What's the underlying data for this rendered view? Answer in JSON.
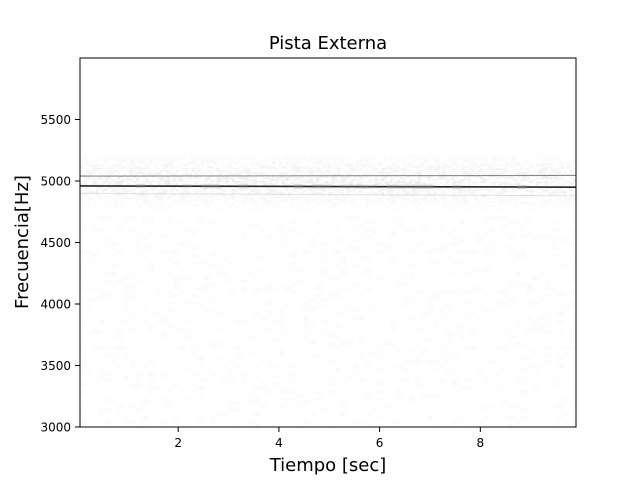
{
  "chart_data": {
    "type": "heatmap",
    "title": "Pista Externa",
    "xlabel": "Tiempo [sec]",
    "ylabel": "Frecuencia[Hz]",
    "xlim": [
      0.05,
      9.9
    ],
    "ylim": [
      3000,
      6000
    ],
    "xticks": [
      2,
      4,
      6,
      8
    ],
    "yticks": [
      3000,
      3500,
      4000,
      4500,
      5000,
      5500
    ],
    "grid": false,
    "colormap": "Greys",
    "colors": {
      "background": "#ffffff",
      "axes_edge": "#000000",
      "strong_band": "#1a1a1a",
      "weak_band": "#5a5a5a",
      "haze": "#9a9a9a"
    },
    "bands": [
      {
        "label": "strong tone",
        "freq_start": 4960,
        "freq_end": 4950,
        "intensity": 0.95
      },
      {
        "label": "upper tone",
        "freq_start": 5040,
        "freq_end": 5045,
        "intensity": 0.7
      },
      {
        "label": "lower faint tone",
        "freq_start": 4900,
        "freq_end": 4880,
        "intensity": 0.15
      }
    ],
    "noise_region": {
      "freq_low": 4700,
      "freq_high": 5200,
      "intensity": 0.12
    },
    "faint_region": {
      "freq_low": 3000,
      "freq_high": 4700,
      "intensity": 0.04
    }
  }
}
